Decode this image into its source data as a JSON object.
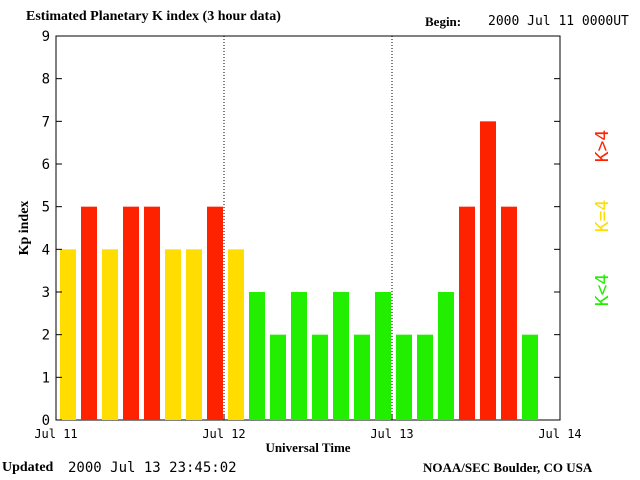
{
  "header": {
    "title": "Estimated Planetary K index (3 hour data)",
    "begin_label": "Begin:",
    "begin_value": "2000 Jul 11 0000UT"
  },
  "footer": {
    "updated_label": "Updated",
    "updated_value": "2000 Jul 13 23:45:02",
    "source": "NOAA/SEC Boulder, CO USA"
  },
  "chart_data": {
    "type": "bar",
    "title": "Estimated Planetary K index (3 hour data)",
    "xlabel": "Universal Time",
    "ylabel": "Kp index",
    "ylim": [
      0,
      9
    ],
    "yticks": [
      0,
      1,
      2,
      3,
      4,
      5,
      6,
      7,
      8,
      9
    ],
    "xticks": [
      "Jul 11",
      "Jul 12",
      "Jul 13",
      "Jul 14"
    ],
    "bar_interval_hours": 3,
    "values": [
      4,
      5,
      4,
      5,
      5,
      4,
      4,
      5,
      4,
      3,
      2,
      3,
      2,
      3,
      2,
      3,
      2,
      2,
      3,
      5,
      7,
      5,
      2
    ],
    "colors": {
      "low": "#22ee00",
      "mid": "#ffdd00",
      "high": "#ff2200"
    },
    "legend": [
      {
        "label": "K<4",
        "color": "#22ee00"
      },
      {
        "label": "K=4",
        "color": "#ffdd00"
      },
      {
        "label": "K>4",
        "color": "#ff2200"
      }
    ],
    "grid": false,
    "day_separators": "dotted vertical lines at each day boundary"
  }
}
